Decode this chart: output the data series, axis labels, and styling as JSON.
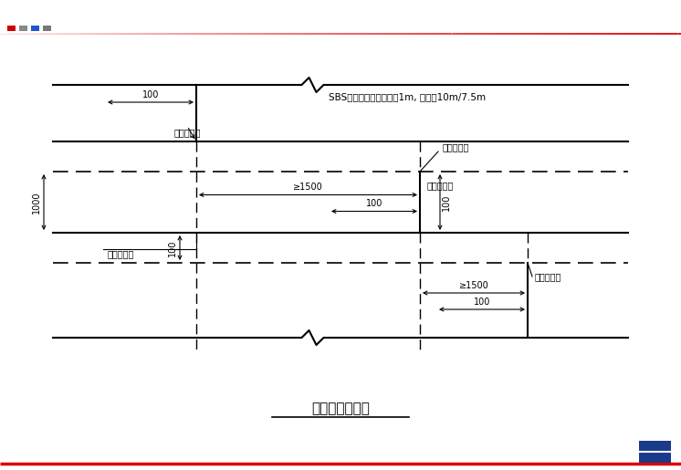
{
  "bg_color": "#ffffff",
  "lc": "#000000",
  "red": "#dd0000",
  "blue_sq": "#2244aa",
  "title": "卷材铺贴平面图",
  "subtitle": "SBS改性沥青防水卷材宽1m, 每卷长10m/7.5m",
  "label_heng_top": "横向搭接缝",
  "label_zong_mid": "纵向搭接缝",
  "label_heng_mid": "横向搭接缝",
  "label_zong_bot": "纵向搭接缝",
  "label_heng_bot": "横向搭接缝",
  "dim_100_top": "100",
  "dim_1500_mid": "≥1500",
  "dim_100_mid": "100",
  "dim_1000": "1000",
  "dim_100_vbot": "100",
  "dim_100_vright": "100",
  "dim_1500_bot": "≥1500",
  "dim_100_bh": "100"
}
